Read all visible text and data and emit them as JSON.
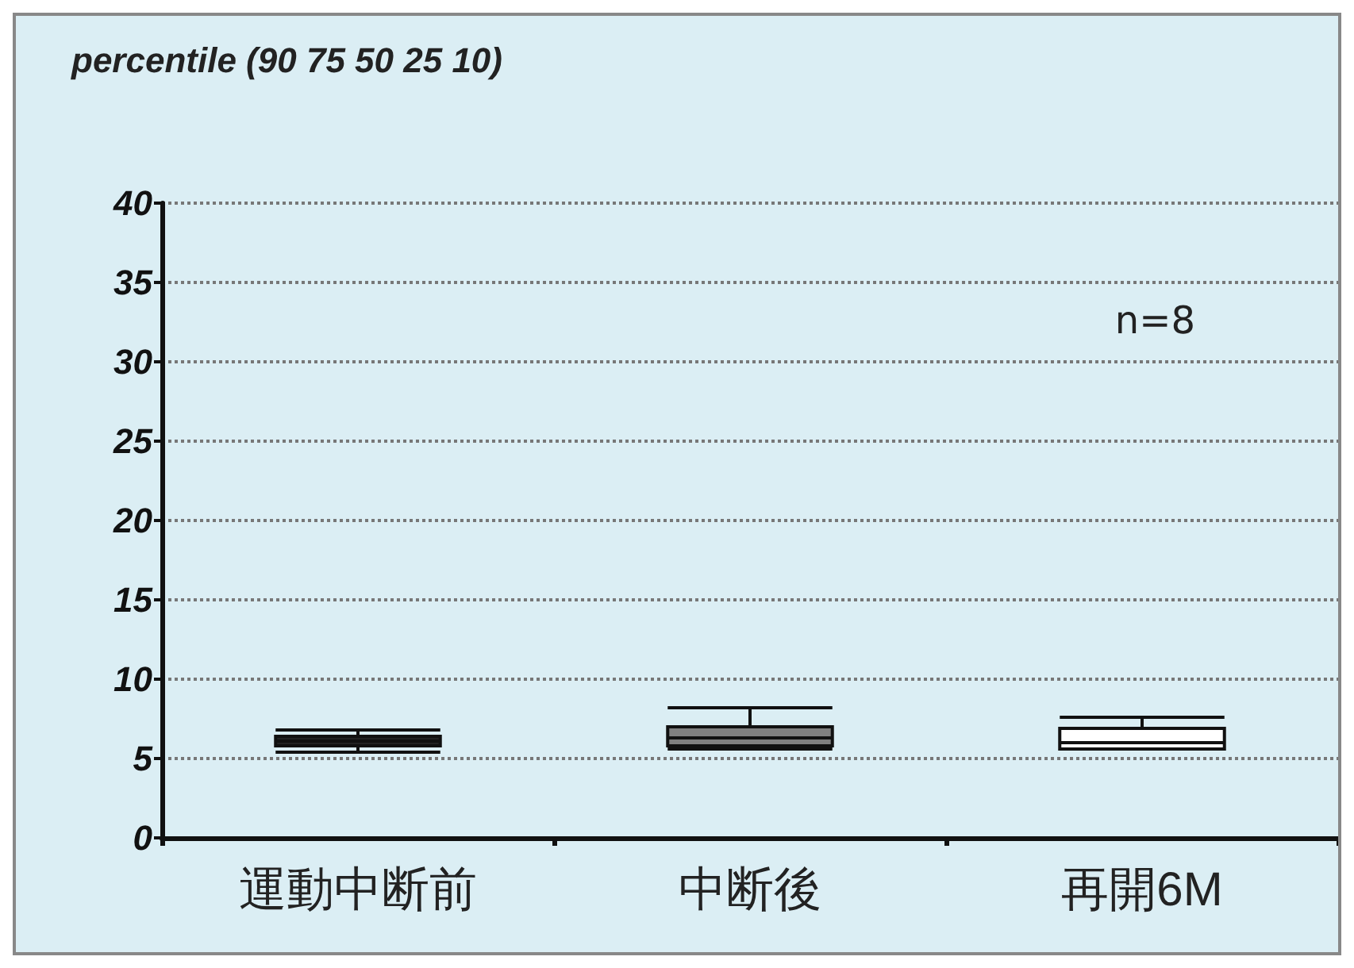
{
  "chart_data": {
    "type": "box",
    "title": "percentile (90 75 50 25 10)",
    "categories": [
      "運動中断前",
      "中断後",
      "再開6M"
    ],
    "boxes": [
      {
        "low": 5.4,
        "q1": 5.8,
        "median": 6.1,
        "q3": 6.4,
        "high": 6.8
      },
      {
        "low": 5.6,
        "q1": 5.8,
        "median": 6.3,
        "q3": 7.0,
        "high": 8.2
      },
      {
        "low": 5.6,
        "q1": 5.6,
        "median": 6.0,
        "q3": 6.9,
        "high": 7.6
      }
    ],
    "colors": [
      "#222222",
      "#808080",
      "#ffffff"
    ],
    "ylim": [
      0,
      40
    ],
    "yticks": [
      0,
      5,
      10,
      15,
      20,
      25,
      30,
      35,
      40
    ],
    "grid": "y",
    "annotations": [
      "n=8"
    ]
  }
}
